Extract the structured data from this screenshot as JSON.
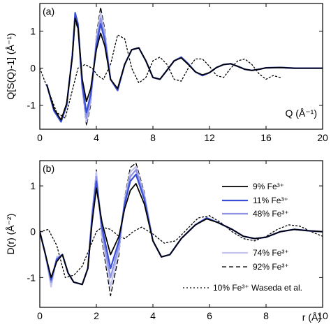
{
  "chart_data": [
    {
      "type": "line",
      "panel_label": "(a)",
      "xlabel": "Q (Å⁻¹)",
      "ylabel": "Q[S(Q)-1] (Å⁻¹)",
      "xlim": [
        0,
        20
      ],
      "ylim": [
        -1.65,
        1.75
      ],
      "xticks": [
        0,
        4,
        8,
        12,
        16,
        20
      ],
      "xtick_labels": [
        "0",
        "4",
        "8",
        "12",
        "16",
        "20"
      ],
      "yticks": [
        -1,
        0,
        1
      ],
      "ytick_labels": [
        "-1",
        "0",
        "1"
      ],
      "series": [
        {
          "name": "9% Fe³⁺",
          "color": "#000000",
          "dash": "solid",
          "width": 1.8,
          "x": [
            0.5,
            1.0,
            1.5,
            1.9,
            2.3,
            2.5,
            2.7,
            3.0,
            3.3,
            3.6,
            4.0,
            4.3,
            4.6,
            5.0,
            5.5,
            6.0,
            6.5,
            7.0,
            7.5,
            8.0,
            8.5,
            9.0,
            9.5,
            10.0,
            10.5,
            11.0,
            11.5,
            12.0,
            12.5,
            13.0,
            13.5,
            14.0,
            14.5,
            15.0,
            15.5,
            16.0,
            17.0,
            18.0,
            19.0,
            20.0
          ],
          "y": [
            -0.45,
            -1.1,
            -1.4,
            -0.95,
            0.3,
            1.35,
            1.1,
            -0.3,
            -0.9,
            -0.55,
            0.5,
            0.95,
            0.6,
            -0.3,
            -0.55,
            0.1,
            0.5,
            0.55,
            0.2,
            -0.25,
            -0.3,
            -0.05,
            0.2,
            0.28,
            0.1,
            -0.1,
            -0.18,
            -0.12,
            0.02,
            0.1,
            0.12,
            0.05,
            -0.03,
            -0.06,
            -0.03,
            0.01,
            0.02,
            0.0,
            0.0,
            0.0
          ]
        },
        {
          "name": "11% Fe³⁺",
          "color": "#3a4fd8",
          "dash": "solid",
          "width": 2.2,
          "x": [
            0.5,
            1.0,
            1.5,
            1.9,
            2.3,
            2.5,
            2.7,
            3.0,
            3.3,
            3.6,
            4.0,
            4.3,
            4.6,
            5.0,
            5.5,
            6.0,
            6.5,
            7.0,
            7.5,
            8.0,
            8.5,
            9.0,
            9.5,
            10.0,
            10.5,
            11.0,
            11.5,
            12.0,
            12.5,
            13.0,
            13.5,
            14.0,
            14.5,
            15.0,
            15.5,
            16.0,
            17.0,
            18.0,
            19.0,
            20.0
          ],
          "y": [
            -0.45,
            -1.15,
            -1.45,
            -1.0,
            0.35,
            1.5,
            1.2,
            -0.45,
            -1.2,
            -0.7,
            0.6,
            1.2,
            0.75,
            -0.3,
            -0.6,
            0.1,
            0.5,
            0.55,
            0.2,
            -0.25,
            -0.3,
            -0.05,
            0.2,
            0.3,
            0.12,
            -0.1,
            -0.2,
            -0.12,
            0.02,
            0.1,
            0.12,
            0.05,
            -0.03,
            -0.06,
            -0.03,
            0.01,
            0.02,
            0.0,
            0.0,
            0.0
          ]
        },
        {
          "name": "48% Fe³⁺",
          "color": "#8f95e4",
          "dash": "solid",
          "width": 2.2,
          "x": [
            0.5,
            1.0,
            1.5,
            1.9,
            2.3,
            2.5,
            2.7,
            3.0,
            3.3,
            3.6,
            4.0,
            4.3,
            4.6,
            5.0,
            5.5,
            6.0,
            6.5,
            7.0,
            7.5,
            8.0,
            8.5,
            9.0,
            9.5,
            10.0,
            10.5,
            11.0,
            11.5,
            12.0,
            12.5,
            13.0,
            13.5,
            14.0,
            14.5,
            15.0,
            15.5,
            16.0,
            17.0,
            18.0,
            19.0,
            20.0
          ],
          "y": [
            -0.45,
            -1.15,
            -1.45,
            -1.0,
            0.35,
            1.45,
            1.15,
            -0.5,
            -1.35,
            -0.8,
            0.7,
            1.35,
            0.85,
            -0.3,
            -0.6,
            0.1,
            0.5,
            0.55,
            0.2,
            -0.25,
            -0.3,
            -0.05,
            0.2,
            0.3,
            0.12,
            -0.1,
            -0.2,
            -0.12,
            0.02,
            0.1,
            0.12,
            0.05,
            -0.03,
            -0.06,
            -0.03,
            0.01,
            0.02,
            0.0,
            0.0,
            0.0
          ]
        },
        {
          "name": "74% Fe³⁺",
          "color": "#c3c5ef",
          "dash": "solid",
          "width": 2.2,
          "x": [
            0.5,
            1.0,
            1.5,
            1.9,
            2.3,
            2.5,
            2.7,
            3.0,
            3.3,
            3.6,
            4.0,
            4.3,
            4.6,
            5.0,
            5.5,
            6.0,
            6.5,
            7.0,
            7.5,
            8.0,
            8.5,
            9.0,
            9.5,
            10.0,
            10.5,
            11.0,
            11.5,
            12.0,
            12.5,
            13.0,
            13.5,
            14.0,
            14.5,
            15.0,
            15.5,
            16.0,
            17.0,
            18.0,
            19.0,
            20.0
          ],
          "y": [
            -0.45,
            -1.15,
            -1.45,
            -1.0,
            0.35,
            1.4,
            1.1,
            -0.55,
            -1.45,
            -0.9,
            0.8,
            1.5,
            0.95,
            -0.3,
            -0.6,
            0.1,
            0.5,
            0.55,
            0.2,
            -0.25,
            -0.3,
            -0.05,
            0.2,
            0.3,
            0.12,
            -0.1,
            -0.2,
            -0.12,
            0.02,
            0.1,
            0.12,
            0.05,
            -0.03,
            -0.06,
            -0.03,
            0.01,
            0.02,
            0.0,
            0.0,
            0.0
          ]
        },
        {
          "name": "92% Fe³⁺",
          "color": "#000000",
          "dash": "dashed",
          "width": 1.3,
          "x": [
            0.5,
            1.0,
            1.5,
            1.9,
            2.3,
            2.5,
            2.7,
            3.0,
            3.3,
            3.6,
            4.0,
            4.3,
            4.6,
            5.0,
            5.5,
            6.0,
            6.5,
            7.0,
            7.5,
            8.0,
            8.5,
            9.0,
            9.5,
            10.0,
            10.5,
            11.0,
            11.5,
            12.0,
            12.5,
            13.0,
            13.5,
            14.0,
            14.5,
            15.0,
            15.5,
            16.0,
            17.0,
            18.0,
            19.0,
            20.0
          ],
          "y": [
            -0.45,
            -1.15,
            -1.45,
            -1.0,
            0.35,
            1.3,
            1.05,
            -0.6,
            -1.55,
            -1.0,
            0.9,
            1.65,
            1.05,
            -0.3,
            -0.6,
            0.1,
            0.5,
            0.55,
            0.2,
            -0.25,
            -0.3,
            -0.05,
            0.2,
            0.3,
            0.12,
            -0.1,
            -0.2,
            -0.12,
            0.02,
            0.1,
            0.12,
            0.05,
            -0.03,
            -0.06,
            -0.03,
            0.01,
            0.02,
            0.0,
            0.0,
            0.0
          ]
        },
        {
          "name": "10% Fe³⁺ Waseda et al.",
          "color": "#000000",
          "dash": "dotted",
          "width": 1.3,
          "x": [
            0.0,
            0.6,
            1.2,
            1.8,
            2.3,
            2.7,
            3.2,
            3.7,
            4.1,
            4.5,
            5.0,
            5.5,
            6.0,
            6.5,
            7.0,
            7.5,
            8.0,
            8.5,
            9.0,
            9.5,
            10.0,
            10.5,
            11.0,
            11.5,
            12.0,
            12.5,
            13.0,
            13.5,
            14.0,
            14.5,
            15.0,
            15.5,
            16.0,
            16.5,
            17.0
          ],
          "y": [
            0.0,
            -0.6,
            -1.2,
            -1.35,
            -0.6,
            0.0,
            0.1,
            0.0,
            -0.2,
            -0.3,
            0.1,
            0.9,
            0.8,
            0.0,
            -0.4,
            -0.25,
            0.2,
            0.3,
            0.1,
            -0.3,
            -0.35,
            0.0,
            0.25,
            0.25,
            0.05,
            -0.2,
            -0.25,
            0.0,
            0.2,
            0.25,
            0.1,
            -0.15,
            -0.3,
            -0.2,
            -0.25
          ]
        }
      ]
    },
    {
      "type": "line",
      "panel_label": "(b)",
      "xlabel": "r (Å)",
      "ylabel": "D(r) (Å⁻²)",
      "xlim": [
        0,
        10
      ],
      "ylim": [
        -1.65,
        1.55
      ],
      "xticks": [
        0,
        2,
        4,
        6,
        8,
        10
      ],
      "xtick_labels": [
        "0",
        "2",
        "4",
        "6",
        "8",
        "10"
      ],
      "yticks": [
        -1,
        0,
        1
      ],
      "ytick_labels": [
        "-1",
        "0",
        "1"
      ],
      "legend": {
        "placement": "right"
      },
      "series": [
        {
          "name": "9% Fe³⁺",
          "color": "#000000",
          "dash": "solid",
          "width": 1.8,
          "x": [
            0.0,
            0.2,
            0.4,
            0.6,
            0.8,
            1.0,
            1.2,
            1.5,
            1.7,
            1.85,
            2.0,
            2.2,
            2.5,
            2.8,
            3.0,
            3.2,
            3.4,
            3.7,
            4.0,
            4.3,
            4.6,
            5.0,
            5.5,
            5.9,
            6.3,
            6.8,
            7.2,
            7.6,
            8.0,
            8.5,
            9.0,
            9.5,
            10.0
          ],
          "y": [
            0.0,
            -0.5,
            -1.0,
            -0.65,
            -0.5,
            -0.9,
            -1.1,
            -1.15,
            -0.8,
            0.2,
            0.95,
            0.2,
            -0.5,
            -0.1,
            0.5,
            0.9,
            1.05,
            0.6,
            -0.2,
            -0.55,
            -0.5,
            -0.15,
            0.15,
            0.28,
            0.2,
            0.05,
            -0.1,
            -0.15,
            -0.12,
            0.0,
            0.05,
            0.02,
            0.0
          ]
        },
        {
          "name": "11% Fe³⁺",
          "color": "#3a4fd8",
          "dash": "solid",
          "width": 2.2,
          "x": [
            0.0,
            0.2,
            0.4,
            0.6,
            0.8,
            1.0,
            1.2,
            1.5,
            1.7,
            1.85,
            2.0,
            2.2,
            2.5,
            2.8,
            3.0,
            3.2,
            3.4,
            3.7,
            4.0,
            4.3,
            4.6,
            5.0,
            5.5,
            5.9,
            6.3,
            6.8,
            7.2,
            7.6,
            8.0,
            8.5,
            9.0,
            9.5,
            10.0
          ],
          "y": [
            0.0,
            -0.5,
            -1.05,
            -0.6,
            -0.5,
            -0.9,
            -1.1,
            -1.15,
            -0.8,
            0.3,
            1.1,
            0.1,
            -0.8,
            -0.2,
            0.6,
            1.1,
            1.25,
            0.7,
            -0.2,
            -0.55,
            -0.5,
            -0.15,
            0.15,
            0.3,
            0.2,
            0.05,
            -0.1,
            -0.15,
            -0.12,
            0.0,
            0.05,
            0.02,
            0.0
          ]
        },
        {
          "name": "48% Fe³⁺",
          "color": "#8f95e4",
          "dash": "solid",
          "width": 2.2,
          "x": [
            0.0,
            0.2,
            0.4,
            0.6,
            0.8,
            1.0,
            1.2,
            1.5,
            1.7,
            1.85,
            2.0,
            2.2,
            2.5,
            2.8,
            3.0,
            3.2,
            3.4,
            3.7,
            4.0,
            4.3,
            4.6,
            5.0,
            5.5,
            5.9,
            6.3,
            6.8,
            7.2,
            7.6,
            8.0,
            8.5,
            9.0,
            9.5,
            10.0
          ],
          "y": [
            0.0,
            -0.5,
            -1.1,
            -0.6,
            -0.5,
            -0.9,
            -1.1,
            -1.15,
            -0.8,
            0.35,
            1.2,
            0.0,
            -1.0,
            -0.3,
            0.65,
            1.2,
            1.35,
            0.75,
            -0.2,
            -0.55,
            -0.5,
            -0.15,
            0.15,
            0.3,
            0.2,
            0.05,
            -0.1,
            -0.15,
            -0.12,
            0.0,
            0.05,
            0.02,
            0.0
          ]
        },
        {
          "name": "74% Fe³⁺",
          "color": "#c3c5ef",
          "dash": "solid",
          "width": 2.2,
          "x": [
            0.0,
            0.2,
            0.4,
            0.6,
            0.8,
            1.0,
            1.2,
            1.5,
            1.7,
            1.85,
            2.0,
            2.2,
            2.5,
            2.8,
            3.0,
            3.2,
            3.4,
            3.7,
            4.0,
            4.3,
            4.6,
            5.0,
            5.5,
            5.9,
            6.3,
            6.8,
            7.2,
            7.6,
            8.0,
            8.5,
            9.0,
            9.5,
            10.0
          ],
          "y": [
            0.0,
            -0.5,
            -1.2,
            -0.55,
            -0.5,
            -0.9,
            -1.1,
            -1.15,
            -0.8,
            0.4,
            1.3,
            -0.1,
            -1.2,
            -0.4,
            0.7,
            1.3,
            1.42,
            0.8,
            -0.2,
            -0.55,
            -0.5,
            -0.15,
            0.15,
            0.3,
            0.2,
            0.05,
            -0.1,
            -0.15,
            -0.12,
            0.0,
            0.05,
            0.02,
            0.0
          ]
        },
        {
          "name": "92% Fe³⁺",
          "color": "#000000",
          "dash": "dashed",
          "width": 1.3,
          "x": [
            0.0,
            0.2,
            0.4,
            0.6,
            0.8,
            1.0,
            1.2,
            1.5,
            1.7,
            1.85,
            2.0,
            2.2,
            2.5,
            2.8,
            3.0,
            3.2,
            3.4,
            3.7,
            4.0,
            4.3,
            4.6,
            5.0,
            5.5,
            5.9,
            6.3,
            6.8,
            7.2,
            7.6,
            8.0,
            8.5,
            9.0,
            9.5,
            10.0
          ],
          "y": [
            0.0,
            -0.5,
            -1.1,
            -0.55,
            -0.5,
            -0.9,
            -1.1,
            -1.15,
            -0.8,
            0.45,
            1.35,
            -0.2,
            -1.4,
            -0.5,
            0.75,
            1.4,
            1.5,
            0.85,
            -0.2,
            -0.55,
            -0.5,
            -0.15,
            0.15,
            0.3,
            0.2,
            0.05,
            -0.1,
            -0.15,
            -0.12,
            0.0,
            0.05,
            0.02,
            0.0
          ]
        },
        {
          "name": "10% Fe³⁺ Waseda et al.",
          "color": "#000000",
          "dash": "dotted",
          "width": 1.3,
          "x": [
            0.0,
            0.3,
            0.6,
            0.9,
            1.2,
            1.5,
            1.8,
            2.0,
            2.2,
            2.5,
            2.8,
            3.0,
            3.3,
            3.6,
            4.0,
            4.4,
            4.8,
            5.2,
            5.6,
            6.0,
            6.4,
            6.8,
            7.2,
            7.6,
            8.0,
            8.4,
            8.8,
            9.2,
            9.6,
            10.0
          ],
          "y": [
            0.0,
            0.05,
            -0.3,
            -1.0,
            -0.95,
            -0.75,
            -0.3,
            0.0,
            0.1,
            0.05,
            -0.1,
            -0.15,
            0.0,
            0.1,
            -0.05,
            -0.25,
            -0.2,
            0.05,
            0.3,
            0.35,
            0.2,
            0.0,
            -0.15,
            -0.2,
            -0.1,
            0.05,
            0.15,
            0.12,
            0.0,
            -0.1
          ]
        }
      ]
    }
  ]
}
